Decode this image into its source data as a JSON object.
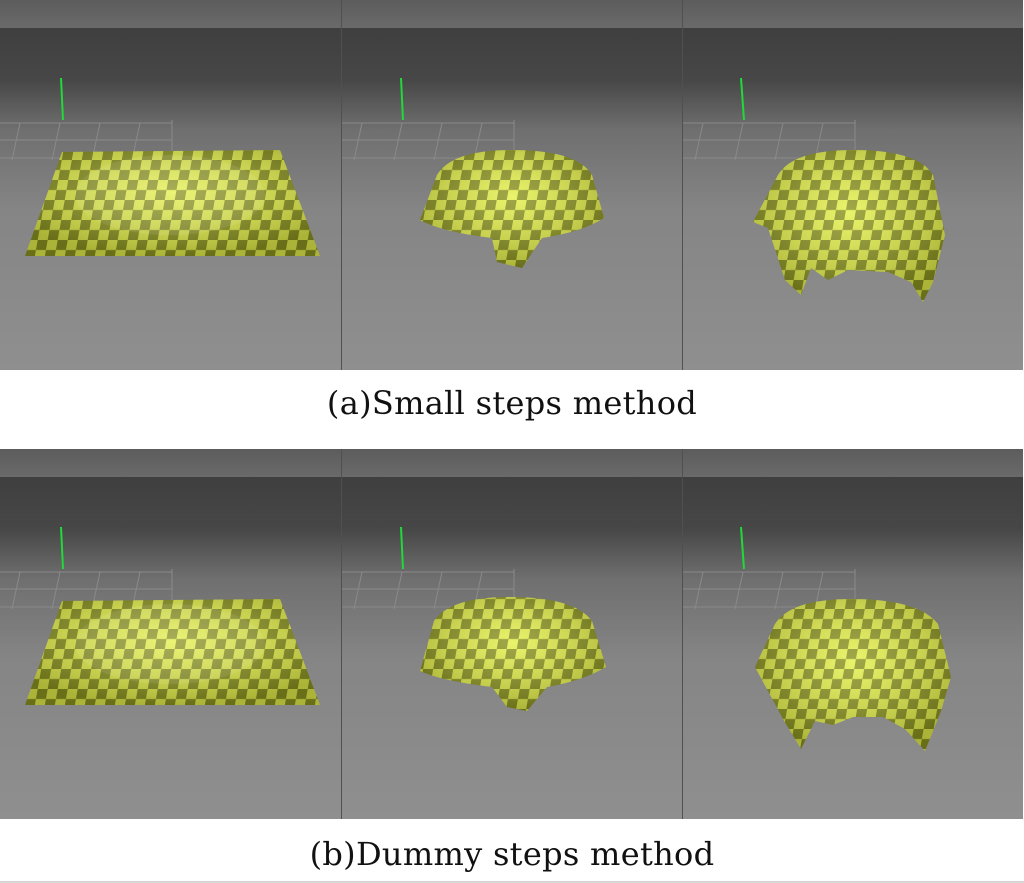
{
  "figure": {
    "rows": [
      {
        "caption": "(a)Small steps method",
        "stages": [
          "flat",
          "gathered",
          "draped"
        ]
      },
      {
        "caption": "(b)Dummy steps method",
        "stages": [
          "flat",
          "gathered",
          "draped"
        ]
      }
    ],
    "colors": {
      "cloth_light": "#e4f04a",
      "cloth_dark": "#8c9420",
      "axis_green": "#22d83a",
      "grid_line": "#8a8a8a",
      "background_dark": "#474747",
      "background_light": "#8f8f8f"
    }
  }
}
